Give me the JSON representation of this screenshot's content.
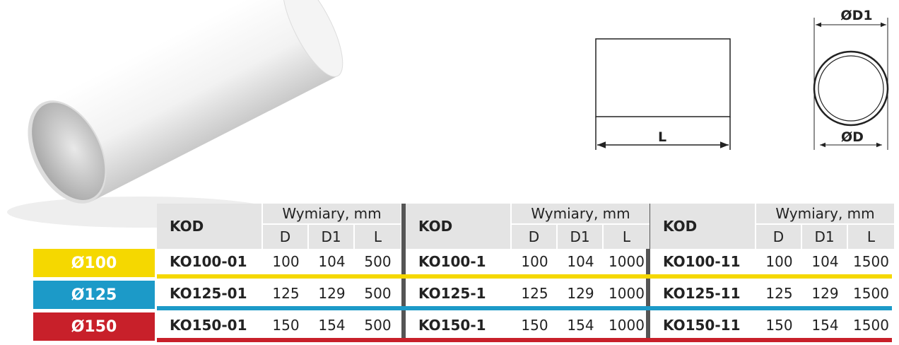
{
  "diagram": {
    "length_label": "L",
    "outer_label": "ØD1",
    "inner_label": "ØD"
  },
  "table": {
    "row_labels": [
      "Ø100",
      "Ø125",
      "Ø150"
    ],
    "groups": [
      {
        "code_header": "KOD",
        "dims_header": "Wymiary, mm",
        "dim_headers": [
          "D",
          "D1",
          "L"
        ],
        "rows": [
          {
            "code": "KO100-01",
            "values": [
              100,
              104,
              500
            ]
          },
          {
            "code": "KO125-01",
            "values": [
              125,
              129,
              500
            ]
          },
          {
            "code": "KO150-01",
            "values": [
              150,
              154,
              500
            ]
          }
        ]
      },
      {
        "code_header": "KOD",
        "dims_header": "Wymiary, mm",
        "dim_headers": [
          "D",
          "D1",
          "L"
        ],
        "rows": [
          {
            "code": "KO100-1",
            "values": [
              100,
              104,
              1000
            ]
          },
          {
            "code": "KO125-1",
            "values": [
              125,
              129,
              1000
            ]
          },
          {
            "code": "KO150-1",
            "values": [
              150,
              154,
              1000
            ]
          }
        ]
      },
      {
        "code_header": "KOD",
        "dims_header": "Wymiary, mm",
        "dim_headers": [
          "D",
          "D1",
          "L"
        ],
        "rows": [
          {
            "code": "KO100-11",
            "values": [
              100,
              104,
              1500
            ]
          },
          {
            "code": "KO125-11",
            "values": [
              125,
              129,
              1500
            ]
          },
          {
            "code": "KO150-11",
            "values": [
              150,
              154,
              1500
            ]
          }
        ]
      }
    ]
  }
}
